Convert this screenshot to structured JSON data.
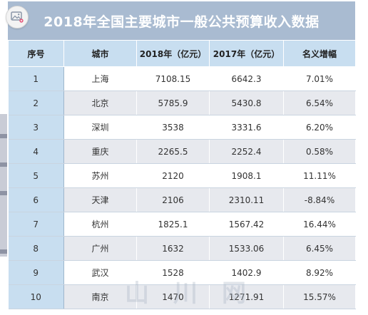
{
  "title": "2018年全国主要城市一般公共预算收入数据",
  "headers": [
    "序号",
    "城市",
    "2018年（亿元）",
    "2017年（亿元）",
    "名义增幅"
  ],
  "rows": [
    {
      "idx": "1",
      "city": "上海",
      "y2018": "7108.15",
      "y2017": "6642.3",
      "growth": "7.01%"
    },
    {
      "idx": "2",
      "city": "北京",
      "y2018": "5785.9",
      "y2017": "5430.8",
      "growth": "6.54%"
    },
    {
      "idx": "3",
      "city": "深圳",
      "y2018": "3538",
      "y2017": "3331.6",
      "growth": "6.20%"
    },
    {
      "idx": "4",
      "city": "重庆",
      "y2018": "2265.5",
      "y2017": "2252.4",
      "growth": "0.58%"
    },
    {
      "idx": "5",
      "city": "苏州",
      "y2018": "2120",
      "y2017": "1908.1",
      "growth": "11.11%"
    },
    {
      "idx": "6",
      "city": "天津",
      "y2018": "2106",
      "y2017": "2310.11",
      "growth": "-8.84%"
    },
    {
      "idx": "7",
      "city": "杭州",
      "y2018": "1825.1",
      "y2017": "1567.42",
      "growth": "16.44%"
    },
    {
      "idx": "8",
      "city": "广州",
      "y2018": "1632",
      "y2017": "1533.06",
      "growth": "6.45%"
    },
    {
      "idx": "9",
      "city": "武汉",
      "y2018": "1528",
      "y2017": "1402.9",
      "growth": "8.92%"
    },
    {
      "idx": "10",
      "city": "南京",
      "y2018": "1470",
      "y2017": "1271.91",
      "growth": "15.57%"
    }
  ],
  "watermark": "山川网",
  "icons": {
    "corner": "add-image-icon"
  },
  "colors": {
    "title_bg": "#a9bbd1",
    "header_bg": "#c8def0",
    "row_alt": "#e7e9ee"
  }
}
